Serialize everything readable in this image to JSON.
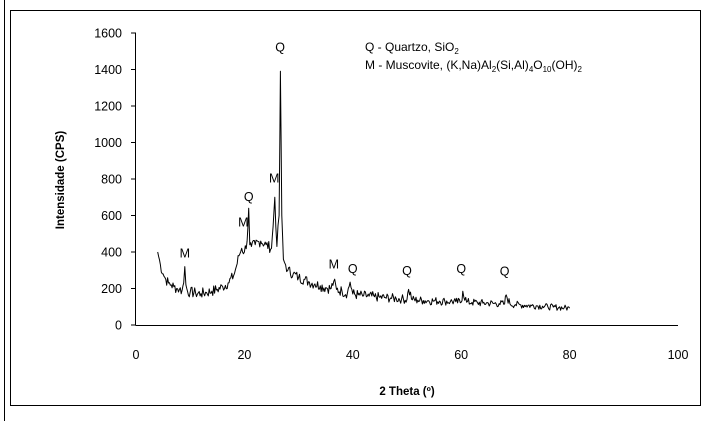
{
  "chart_data": {
    "type": "line",
    "title": "",
    "xlabel": "2 Theta (º)",
    "ylabel": "Intensidade (CPS)",
    "xlim": [
      0,
      100
    ],
    "ylim": [
      0,
      1600
    ],
    "xticks": [
      "0",
      "20",
      "40",
      "60",
      "80",
      "100"
    ],
    "yticks": [
      "0",
      "200",
      "400",
      "600",
      "800",
      "1000",
      "1200",
      "1400",
      "1600"
    ],
    "grid": false,
    "legend": {
      "placement": "top-right",
      "entries": [
        {
          "prefix": "Q - Quartzo, SiO",
          "subscripts": [
            "2"
          ],
          "parts": [
            "Q - Quartzo, SiO",
            "2"
          ]
        },
        {
          "parts": [
            "M - Muscovite, (K,Na)Al",
            "2",
            "(Si,Al)",
            "4",
            "O",
            "10",
            "(OH)",
            "2"
          ]
        }
      ]
    },
    "annotations": [
      {
        "text": "M",
        "x": 9,
        "y": 370
      },
      {
        "text": "M",
        "x": 19.8,
        "y": 540
      },
      {
        "text": "Q",
        "x": 20.8,
        "y": 680
      },
      {
        "text": "M",
        "x": 25.5,
        "y": 780
      },
      {
        "text": "Q",
        "x": 26.6,
        "y": 1500
      },
      {
        "text": "M",
        "x": 36.5,
        "y": 310
      },
      {
        "text": "Q",
        "x": 40,
        "y": 285
      },
      {
        "text": "Q",
        "x": 50,
        "y": 275
      },
      {
        "text": "Q",
        "x": 60,
        "y": 285
      },
      {
        "text": "Q",
        "x": 68,
        "y": 270
      }
    ],
    "series": [
      {
        "color": "#000000",
        "x": [
          4,
          4.5,
          5,
          5.5,
          6,
          6.5,
          7,
          7.5,
          8,
          8.5,
          8.8,
          9,
          9.2,
          9.5,
          10,
          11,
          12,
          13,
          14,
          15,
          16,
          17,
          18,
          18.5,
          19,
          19.5,
          20,
          20.5,
          20.8,
          21,
          21.3,
          22,
          23,
          24,
          25,
          25.3,
          25.6,
          26,
          26.4,
          26.65,
          26.9,
          27.2,
          27.6,
          28,
          29,
          30,
          31,
          32,
          33,
          34,
          35,
          36,
          36.5,
          37,
          38,
          39,
          39.5,
          40,
          41,
          42,
          43,
          44,
          45,
          46,
          47,
          48,
          49,
          50,
          50.3,
          51,
          52,
          53,
          54,
          55,
          56,
          57,
          58,
          59,
          60,
          60.3,
          61,
          62,
          63,
          64,
          65,
          66,
          67,
          68,
          68.3,
          69,
          70,
          71,
          72,
          73,
          74,
          75,
          76,
          77,
          78,
          79,
          80
        ],
        "y": [
          400,
          330,
          280,
          250,
          230,
          220,
          210,
          200,
          195,
          190,
          230,
          320,
          220,
          185,
          180,
          175,
          172,
          178,
          185,
          195,
          210,
          230,
          270,
          320,
          380,
          420,
          400,
          460,
          640,
          440,
          430,
          440,
          460,
          440,
          420,
          540,
          700,
          430,
          600,
          1390,
          600,
          360,
          330,
          300,
          280,
          260,
          250,
          235,
          225,
          215,
          205,
          200,
          240,
          195,
          185,
          175,
          235,
          170,
          165,
          160,
          158,
          155,
          152,
          150,
          148,
          145,
          143,
          140,
          195,
          138,
          136,
          134,
          133,
          132,
          131,
          130,
          129,
          127,
          125,
          185,
          125,
          124,
          122,
          120,
          120,
          118,
          117,
          115,
          165,
          115,
          112,
          110,
          108,
          106,
          105,
          103,
          100,
          98,
          96,
          94,
          92
        ]
      }
    ]
  }
}
